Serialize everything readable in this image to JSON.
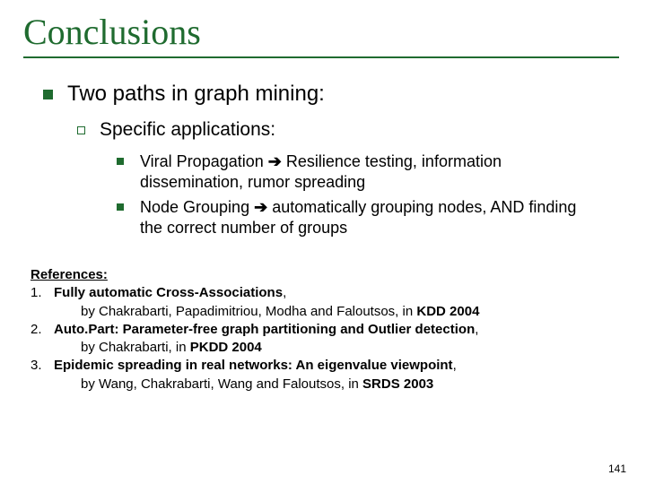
{
  "title": "Conclusions",
  "colors": {
    "accent": "#1f6b2f",
    "text": "#000000",
    "bg": "#ffffff"
  },
  "lvl1": {
    "text": "Two paths in graph mining:"
  },
  "lvl2": {
    "text": "Specific applications:"
  },
  "lvl3a": {
    "lead": "Viral Propagation ",
    "arrow": "➔",
    "rest": " Resilience testing, information dissemination, rumor spreading"
  },
  "lvl3b": {
    "lead": "Node Grouping ",
    "arrow": "➔",
    "rest": " automatically grouping nodes, AND finding the correct number of groups"
  },
  "refs": {
    "heading": "References:",
    "items": [
      {
        "num": "1.",
        "title": "Fully automatic Cross-Associations",
        "comma": ",",
        "by": "by Chakrabarti, Papadimitriou, Modha and Faloutsos, in ",
        "venue": "KDD 2004"
      },
      {
        "num": "2.",
        "title": "Auto.Part: Parameter-free graph partitioning and Outlier detection",
        "comma": ",",
        "by": "by Chakrabarti, in ",
        "venue": "PKDD 2004"
      },
      {
        "num": "3.",
        "title": "Epidemic spreading in real networks: An eigenvalue viewpoint",
        "comma": ",",
        "by": "by Wang, Chakrabarti, Wang and Faloutsos, in ",
        "venue": "SRDS 2003"
      }
    ]
  },
  "pagenum": "141"
}
